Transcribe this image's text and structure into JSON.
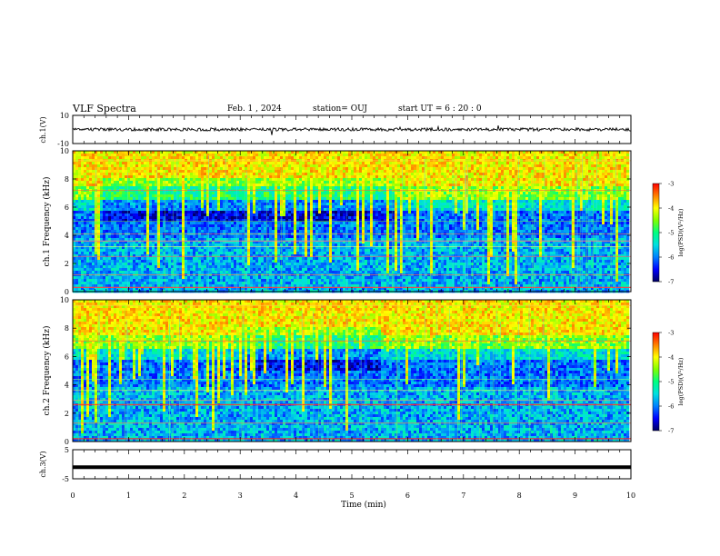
{
  "header": {
    "title": "VLF Spectra",
    "date": "Feb. 1 , 2024",
    "station": "station= OUJ",
    "start_time": "start UT = 6 : 20 : 0"
  },
  "chart_data": [
    {
      "type": "line",
      "name": "ch1-waveform",
      "ylabel": "ch.1(V)",
      "ylim": [
        -10,
        10
      ],
      "y_ticks": [
        "10",
        "-10"
      ],
      "xlim": [
        0,
        10
      ],
      "signal": "noise band around 0 V, amplitude about 1 V, occasional spikes to ±4 V"
    },
    {
      "type": "heatmap",
      "name": "ch1-spectrogram",
      "ylabel": "ch.1 Frequency (kHz)",
      "ylim": [
        0,
        10
      ],
      "y_ticks": [
        "0",
        "2",
        "4",
        "6",
        "8",
        "10"
      ],
      "xlim": [
        0,
        10
      ],
      "colorbar": {
        "label": "log(PSD)(V²/Hz)",
        "range": [
          -7,
          -3
        ],
        "ticks": [
          "-3",
          "-4",
          "-5",
          "-6",
          "-7"
        ]
      }
    },
    {
      "type": "heatmap",
      "name": "ch2-spectrogram",
      "ylabel": "ch.2 Frequency (kHz)",
      "ylim": [
        0,
        10
      ],
      "y_ticks": [
        "0",
        "2",
        "4",
        "6",
        "8",
        "10"
      ],
      "xlim": [
        0,
        10
      ],
      "colorbar": {
        "label": "log(PSD)(V²/Hz)",
        "range": [
          -7,
          -3
        ],
        "ticks": [
          "-3",
          "-4",
          "-5",
          "-6",
          "-7"
        ]
      }
    },
    {
      "type": "line",
      "name": "ch3-level",
      "ylabel": "ch.3(V)",
      "ylim": [
        -5,
        5
      ],
      "y_ticks": [
        "5",
        "-5"
      ],
      "xlim": [
        0,
        10
      ],
      "signal": "flat at about -1 V"
    }
  ],
  "x_axis": {
    "label": "Time (min)",
    "ticks": [
      "0",
      "1",
      "2",
      "3",
      "4",
      "5",
      "6",
      "7",
      "8",
      "9",
      "10"
    ]
  },
  "colormap": [
    "#000060",
    "#0000ff",
    "#0080ff",
    "#00e0e0",
    "#00ff80",
    "#80ff00",
    "#ffff00",
    "#ff8000",
    "#ff0000",
    "#ff9090",
    "#ffffff"
  ]
}
